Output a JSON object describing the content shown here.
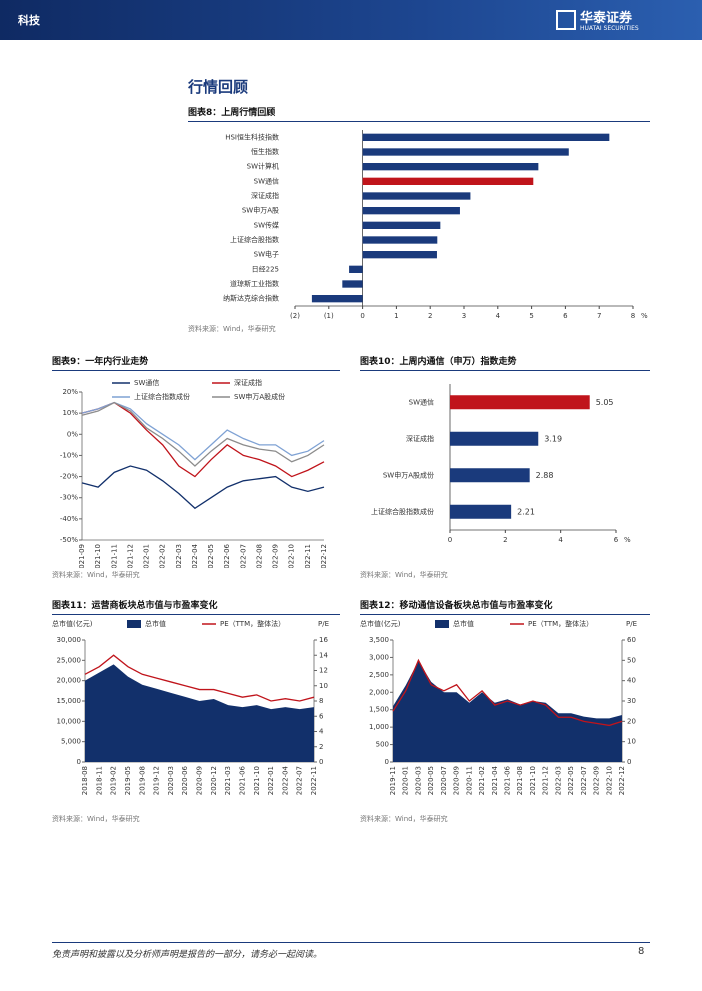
{
  "header": {
    "section": "科技",
    "logo": "华泰证券",
    "logo_en": "HUATAI SECURITIES"
  },
  "heading": "行情回顾",
  "chart_data": [
    {
      "type": "hbar",
      "title": "图表8：上周行情回顾",
      "source": "资料来源：Wind，华泰研究",
      "categories": [
        "HSI恒生科技指数",
        "恒生指数",
        "SW计算机",
        "SW通信",
        "深证成指",
        "SW申万A股",
        "SW传媒",
        "上证综合股指数",
        "SW电子",
        "日经225",
        "道琼斯工业指数",
        "纳斯达克综合指数"
      ],
      "values": [
        7.3,
        6.1,
        5.2,
        5.05,
        3.19,
        2.88,
        2.3,
        2.21,
        2.2,
        -0.4,
        -0.6,
        -1.5
      ],
      "colors": [
        "#1a3a7c",
        "#1a3a7c",
        "#1a3a7c",
        "#c0141b",
        "#1a3a7c",
        "#1a3a7c",
        "#1a3a7c",
        "#1a3a7c",
        "#1a3a7c",
        "#1a3a7c",
        "#1a3a7c",
        "#1a3a7c"
      ],
      "xlim": [
        -2,
        8
      ],
      "xticks": [
        {
          "value": -2,
          "label": "(2)"
        },
        {
          "value": -1,
          "label": "(1)"
        },
        0,
        1,
        2,
        3,
        4,
        5,
        6,
        7,
        8
      ],
      "xunit": "%"
    },
    {
      "type": "line",
      "title": "图表9：一年内行业走势",
      "source": "资料来源：Wind，华泰研究",
      "categories": [
        "2021-09",
        "2021-10",
        "2021-11",
        "2021-12",
        "2022-01",
        "2022-02",
        "2022-03",
        "2022-04",
        "2022-05",
        "2022-06",
        "2022-07",
        "2022-08",
        "2022-09",
        "2022-10",
        "2022-11",
        "2022-12"
      ],
      "series": [
        {
          "name": "SW通信",
          "color": "#12306b",
          "values": [
            -23,
            -25,
            -18,
            -15,
            -17,
            -22,
            -28,
            -35,
            -30,
            -25,
            -22,
            -21,
            -20,
            -25,
            -27,
            -25
          ]
        },
        {
          "name": "深证成指",
          "color": "#c0141b",
          "values": [
            10,
            12,
            15,
            10,
            2,
            -5,
            -15,
            -20,
            -12,
            -5,
            -10,
            -12,
            -15,
            -20,
            -17,
            -13
          ]
        },
        {
          "name": "上证综合指数成份",
          "color": "#7fa2d4",
          "values": [
            10,
            12,
            15,
            12,
            5,
            0,
            -5,
            -12,
            -5,
            2,
            -2,
            -5,
            -5,
            -10,
            -8,
            -3
          ]
        },
        {
          "name": "SW申万A股成份",
          "color": "#8c8c8c",
          "values": [
            9,
            11,
            15,
            11,
            3,
            -2,
            -8,
            -15,
            -8,
            -2,
            -5,
            -7,
            -8,
            -13,
            -10,
            -5
          ]
        }
      ],
      "ylim": [
        -50,
        20
      ],
      "yticks": [
        {
          "value": -50,
          "label": "-50%"
        },
        {
          "value": -40,
          "label": "-40%"
        },
        {
          "value": -30,
          "label": "-30%"
        },
        {
          "value": -20,
          "label": "-20%"
        },
        {
          "value": -10,
          "label": "-10%"
        },
        {
          "value": 0,
          "label": "0%"
        },
        {
          "value": 10,
          "label": "10%"
        },
        {
          "value": 20,
          "label": "20%"
        }
      ]
    },
    {
      "type": "hbar",
      "title": "图表10：上周内通信（申万）指数走势",
      "source": "资料来源：Wind，华泰研究",
      "categories": [
        "SW通信",
        "深证成指",
        "SW申万A股成份",
        "上证综合股指数成份"
      ],
      "values": [
        5.05,
        3.19,
        2.88,
        2.21
      ],
      "colors": [
        "#c0141b",
        "#1a3a7c",
        "#1a3a7c",
        "#1a3a7c"
      ],
      "show_values": true,
      "xlim": [
        0,
        6
      ],
      "xticks": [
        0,
        2,
        4,
        6
      ],
      "xunit": "%"
    },
    {
      "type": "combo",
      "title": "图表11：运营商板块总市值与市盈率变化",
      "source": "资料来源：Wind，华泰研究",
      "ylabel": "总市值(亿元)",
      "y2label": "P/E",
      "categories": [
        "2018-08",
        "2018-11",
        "2019-02",
        "2019-05",
        "2019-08",
        "2019-12",
        "2020-03",
        "2020-06",
        "2020-09",
        "2020-12",
        "2021-03",
        "2021-06",
        "2021-10",
        "2022-01",
        "2022-04",
        "2022-07",
        "2022-11"
      ],
      "series": [
        {
          "name": "总市值",
          "type": "area",
          "color": "#12306b",
          "values": [
            20000,
            22000,
            24000,
            21000,
            19000,
            18000,
            17000,
            16000,
            15000,
            15500,
            14000,
            13500,
            14000,
            13000,
            13500,
            13000,
            13500
          ]
        },
        {
          "name": "PE（TTM，整体法）",
          "type": "line",
          "axis": "y2",
          "color": "#c0141b",
          "values": [
            11.5,
            12.5,
            14,
            12.5,
            11.5,
            11,
            10.5,
            10,
            9.5,
            9.5,
            9,
            8.5,
            8.8,
            8,
            8.3,
            8,
            8.5
          ]
        }
      ],
      "ylim": [
        0,
        30000
      ],
      "yticks": [
        0,
        {
          "value": 5000,
          "label": "5,000"
        },
        {
          "value": 10000,
          "label": "10,000"
        },
        {
          "value": 15000,
          "label": "15,000"
        },
        {
          "value": 20000,
          "label": "20,000"
        },
        {
          "value": 25000,
          "label": "25,000"
        },
        {
          "value": 30000,
          "label": "30,000"
        }
      ],
      "y2lim": [
        0,
        16
      ],
      "y2ticks": [
        0,
        2,
        4,
        6,
        8,
        10,
        12,
        14,
        16
      ]
    },
    {
      "type": "combo",
      "title": "图表12：移动通信设备板块总市值与市盈率变化",
      "source": "资料来源：Wind，华泰研究",
      "ylabel": "总市值(亿元)",
      "y2label": "P/E",
      "categories": [
        "2019-11",
        "2020-01",
        "2020-03",
        "2020-05",
        "2020-07",
        "2020-09",
        "2020-11",
        "2021-02",
        "2021-04",
        "2021-06",
        "2021-08",
        "2021-10",
        "2021-12",
        "2022-03",
        "2022-05",
        "2022-07",
        "2022-09",
        "2022-10",
        "2022-12"
      ],
      "series": [
        {
          "name": "总市值",
          "type": "area",
          "color": "#12306b",
          "values": [
            1600,
            2200,
            2900,
            2300,
            2000,
            2000,
            1700,
            2000,
            1700,
            1800,
            1650,
            1750,
            1700,
            1400,
            1400,
            1300,
            1250,
            1250,
            1350
          ]
        },
        {
          "name": "PE（TTM，整体法）",
          "type": "line",
          "axis": "y2",
          "color": "#c0141b",
          "values": [
            25,
            35,
            50,
            38,
            35,
            38,
            30,
            35,
            28,
            30,
            28,
            30,
            28,
            22,
            22,
            20,
            19,
            18,
            20
          ]
        }
      ],
      "ylim": [
        0,
        3500
      ],
      "yticks": [
        0,
        500,
        {
          "value": 1000,
          "label": "1,000"
        },
        {
          "value": 1500,
          "label": "1,500"
        },
        {
          "value": 2000,
          "label": "2,000"
        },
        {
          "value": 2500,
          "label": "2,500"
        },
        {
          "value": 3000,
          "label": "3,000"
        },
        {
          "value": 3500,
          "label": "3,500"
        }
      ],
      "y2lim": [
        0,
        60
      ],
      "y2ticks": [
        0,
        10,
        20,
        30,
        40,
        50,
        60
      ]
    }
  ],
  "footer": {
    "disclaimer": "免责声明和披露以及分析师声明是报告的一部分，请务必一起阅读。",
    "page": "8"
  }
}
